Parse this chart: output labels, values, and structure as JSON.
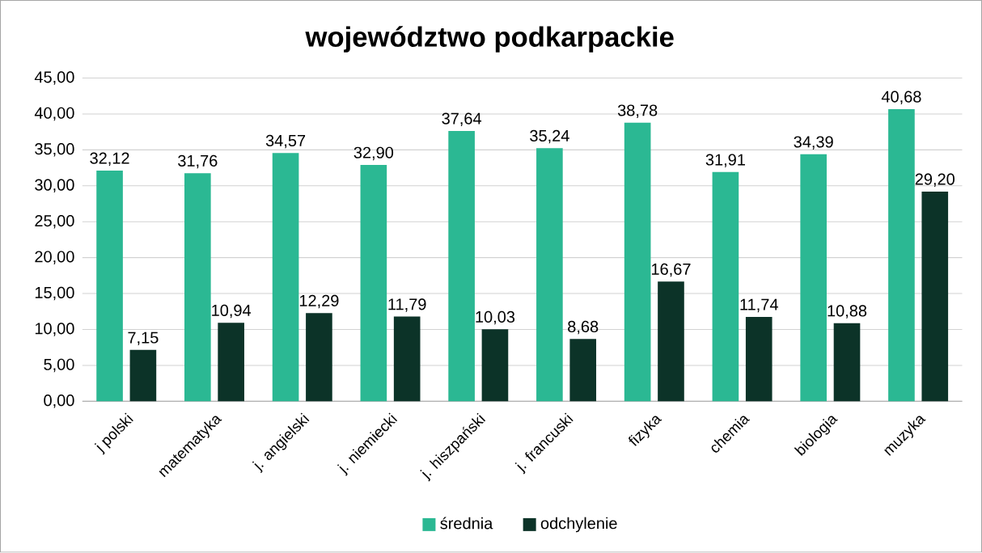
{
  "chart_data": {
    "type": "bar",
    "title": "województwo podkarpackie",
    "categories": [
      "j polski",
      "matematyka",
      "j. angielski",
      "j. niemiecki",
      "j. hiszpański",
      "j. francuski",
      "fizyka",
      "chemia",
      "biologia",
      "muzyka"
    ],
    "series": [
      {
        "name": "średnia",
        "color": "#2bb893",
        "values": [
          32.12,
          31.76,
          34.57,
          32.9,
          37.64,
          35.24,
          38.78,
          31.91,
          34.39,
          40.68
        ],
        "value_labels": [
          "32,12",
          "31,76",
          "34,57",
          "32,90",
          "37,64",
          "35,24",
          "38,78",
          "31,91",
          "34,39",
          "40,68"
        ]
      },
      {
        "name": "odchylenie",
        "color": "#0c3328",
        "values": [
          7.15,
          10.94,
          12.29,
          11.79,
          10.03,
          8.68,
          16.67,
          11.74,
          10.88,
          29.2
        ],
        "value_labels": [
          "7,15",
          "10,94",
          "12,29",
          "11,79",
          "10,03",
          "8,68",
          "16,67",
          "11,74",
          "10,88",
          "29,20"
        ]
      }
    ],
    "ylim": [
      0,
      45
    ],
    "yticks": [
      {
        "value": 0,
        "label": "0,00"
      },
      {
        "value": 5,
        "label": "5,00"
      },
      {
        "value": 10,
        "label": "10,00"
      },
      {
        "value": 15,
        "label": "15,00"
      },
      {
        "value": 20,
        "label": "20,00"
      },
      {
        "value": 25,
        "label": "25,00"
      },
      {
        "value": 30,
        "label": "30,00"
      },
      {
        "value": 35,
        "label": "35,00"
      },
      {
        "value": 40,
        "label": "40,00"
      },
      {
        "value": 45,
        "label": "45,00"
      }
    ],
    "grid": "y",
    "legend": "bottom"
  }
}
